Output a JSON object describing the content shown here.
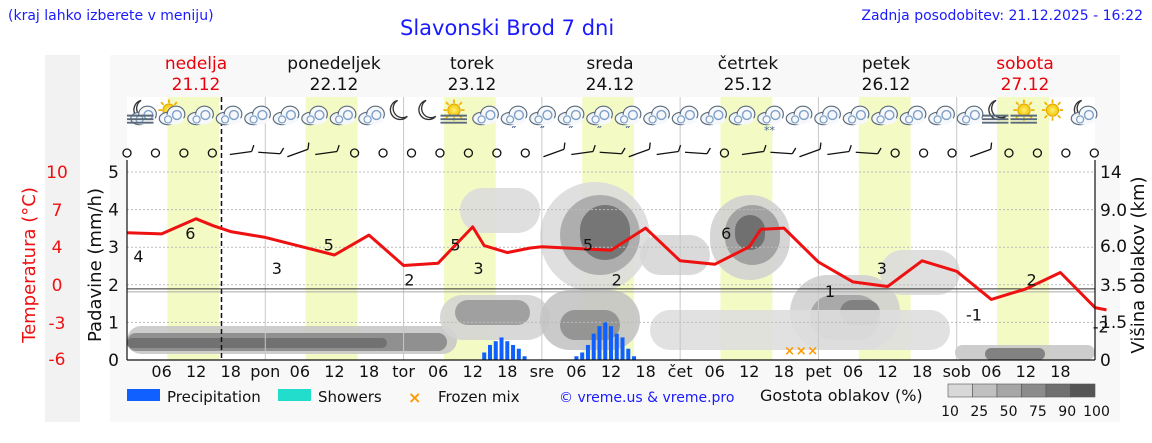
{
  "header": {
    "hint": "(kraj lahko izberete v meniju)",
    "title": "Slavonski Brod 7 dni",
    "updated": "Zadnja posodobitev: 21.12.2025 - 16:22"
  },
  "days": [
    {
      "name": "nedelja",
      "date": "21.12",
      "weekend": true
    },
    {
      "name": "ponedeljek",
      "date": "22.12",
      "weekend": false
    },
    {
      "name": "torek",
      "date": "23.12",
      "weekend": false
    },
    {
      "name": "sreda",
      "date": "24.12",
      "weekend": false
    },
    {
      "name": "četrtek",
      "date": "25.12",
      "weekend": false
    },
    {
      "name": "petek",
      "date": "26.12",
      "weekend": false
    },
    {
      "name": "sobota",
      "date": "27.12",
      "weekend": true
    }
  ],
  "colors": {
    "text_blue": "#1a1aff",
    "weekend_red": "#e8000b",
    "temp_line": "#ee1111",
    "precip": "#1060ff",
    "showers": "#22ddcc",
    "frozen": "#ff9900",
    "daylight": "#f4fac4"
  },
  "chart_data": {
    "type": "line",
    "title": "Slavonski Brod 7 dni",
    "xlabel": "",
    "x_tick_labels": [
      "06",
      "12",
      "18",
      "pon",
      "06",
      "12",
      "18",
      "tor",
      "06",
      "12",
      "18",
      "sre",
      "06",
      "12",
      "18",
      "čet",
      "06",
      "12",
      "18",
      "pet",
      "06",
      "12",
      "18",
      "sob",
      "06",
      "12",
      "18"
    ],
    "left_axis": {
      "label": "Padavine (mm/h)",
      "ticks": [
        "0",
        "1",
        "2",
        "3",
        "4",
        "5"
      ],
      "ylim": [
        0,
        5
      ]
    },
    "temp_axis": {
      "label": "Temperatura (°C)",
      "ticks": [
        "-6",
        "-3",
        "0",
        "4",
        "7",
        "10"
      ],
      "ylim": [
        -6,
        10
      ]
    },
    "right_axis": {
      "label": "Višina oblakov (km)",
      "ticks": [
        "0",
        "1.5",
        "3.5",
        "6.0",
        "9.0",
        "14"
      ]
    },
    "series": [
      {
        "name": "Temperatura",
        "unit": "°C",
        "x_hours": [
          0,
          6,
          12,
          15,
          18,
          24,
          36,
          42,
          48,
          54,
          60,
          62,
          66,
          70,
          72,
          84,
          90,
          96,
          102,
          108,
          110,
          114,
          120,
          126,
          132,
          138,
          144,
          150,
          156,
          162,
          168,
          170
        ],
        "values": [
          4.8,
          4.7,
          6.0,
          5.4,
          4.9,
          4.4,
          2.9,
          4.6,
          2.0,
          2.2,
          5.3,
          3.7,
          3.1,
          3.5,
          3.6,
          3.3,
          5.2,
          2.4,
          2.1,
          3.6,
          5.1,
          5.2,
          2.3,
          0.6,
          0.2,
          2.4,
          1.5,
          -0.9,
          0.0,
          1.4,
          -1.6,
          -1.8
        ]
      },
      {
        "name": "Padavine",
        "unit": "mm/h",
        "x_hours": [
          62,
          63,
          64,
          65,
          66,
          67,
          68,
          69,
          78,
          79,
          80,
          81,
          82,
          83,
          84,
          85,
          86,
          87,
          88
        ],
        "values": [
          0.2,
          0.4,
          0.5,
          0.6,
          0.5,
          0.4,
          0.3,
          0.1,
          0.1,
          0.2,
          0.4,
          0.7,
          0.9,
          1.0,
          0.9,
          0.7,
          0.6,
          0.3,
          0.1
        ]
      }
    ],
    "temperature_labels": [
      {
        "hour": 2,
        "text": "4"
      },
      {
        "hour": 11,
        "text": "6"
      },
      {
        "hour": 26,
        "text": "3"
      },
      {
        "hour": 35,
        "text": "5"
      },
      {
        "hour": 49,
        "text": "2"
      },
      {
        "hour": 57,
        "text": "5"
      },
      {
        "hour": 61,
        "text": "3"
      },
      {
        "hour": 80,
        "text": "5"
      },
      {
        "hour": 85,
        "text": "2"
      },
      {
        "hour": 104,
        "text": "6"
      },
      {
        "hour": 122,
        "text": "1"
      },
      {
        "hour": 131,
        "text": "3"
      },
      {
        "hour": 147,
        "text": "-1"
      },
      {
        "hour": 157,
        "text": "2"
      },
      {
        "hour": 169,
        "text": "-2"
      }
    ],
    "frozen_mix_hours": [
      115,
      117,
      119
    ],
    "current_hour": 16.4,
    "legend": {
      "precipitation": "Precipitation",
      "showers": "Showers",
      "frozen": "Frozen mix",
      "credit": "© vreme.us & vreme.pro",
      "cloud_density": "Gostota oblakov (%)",
      "cloud_scale": [
        "10",
        "25",
        "50",
        "75",
        "90",
        "100"
      ]
    },
    "icon_semantics": [
      "moon-cloud-fog-icon",
      "sun-cloud-icon",
      "cloud-icon",
      "cloud-icon",
      "cloud-icon",
      "cloud-icon",
      "cloud-icon",
      "cloud-icon",
      "cloud-icon",
      "moon-icon",
      "moon-icon",
      "sun-fog-icon",
      "cloud-icon",
      "cloud-rain-icon",
      "cloud-rain-icon",
      "cloud-rain-icon",
      "cloud-rain-icon",
      "cloud-rain-icon",
      "cloud-icon",
      "cloud-icon",
      "cloud-icon",
      "cloud-icon",
      "cloud-snow-icon",
      "cloud-icon",
      "cloud-icon",
      "cloud-icon",
      "cloud-icon",
      "cloud-icon",
      "cloud-icon",
      "cloud-icon",
      "moon-fog-icon",
      "sun-fog-icon",
      "sun-icon",
      "moon-cloud-icon"
    ]
  }
}
